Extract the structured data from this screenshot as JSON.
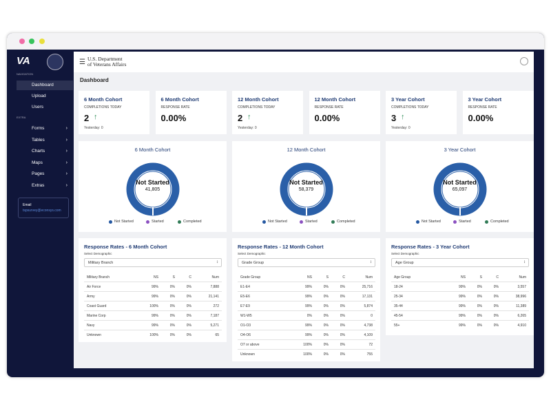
{
  "sidebar": {
    "logo": "VA",
    "nav_heading": "NAVIGATION",
    "nav": [
      "Dashboard",
      "Upload",
      "Users"
    ],
    "extra_heading": "EXTRA",
    "extra": [
      "Forms",
      "Tables",
      "Charts",
      "Maps",
      "Pages",
      "Extras"
    ],
    "email_label": "Email",
    "email": "tspsurvey@econsys.com"
  },
  "header": {
    "title_line1": "U.S. Department",
    "title_line2": "of Veterans Affairs"
  },
  "page_title": "Dashboard",
  "stat_cards": [
    {
      "title": "6 Month Cohort",
      "label": "COMPLETIONS TODAY",
      "value": "2",
      "note": "Yesterday: 0"
    },
    {
      "title": "6 Month Cohort",
      "label": "RESPONSE RATE",
      "value": "0.00%"
    },
    {
      "title": "12 Month Cohort",
      "label": "COMPLETIONS TODAY",
      "value": "2",
      "note": "Yesterday: 0"
    },
    {
      "title": "12 Month Cohort",
      "label": "RESPONSE RATE",
      "value": "0.00%"
    },
    {
      "title": "3 Year Cohort",
      "label": "COMPLETIONS TODAY",
      "value": "3",
      "note": "Yesterday: 0"
    },
    {
      "title": "3 Year Cohort",
      "label": "RESPONSE RATE",
      "value": "0.00%"
    }
  ],
  "donuts": [
    {
      "title": "6 Month Cohort",
      "center_label": "Not Started",
      "center_value": "41,805"
    },
    {
      "title": "12 Month Cohort",
      "center_label": "Not Started",
      "center_value": "58,379"
    },
    {
      "title": "3 Year Cohort",
      "center_label": "Not Started",
      "center_value": "65,097"
    }
  ],
  "legend": [
    "Not Started",
    "Started",
    "Completed"
  ],
  "tables": [
    {
      "title": "Response Rates - 6 Month Cohort",
      "select_label": "Select Demographic",
      "select_value": "Military Branch",
      "columns": [
        "Military Branch",
        "NS",
        "S",
        "C",
        "Num"
      ],
      "rows": [
        [
          "Air Force",
          "99%",
          "0%",
          "0%",
          "7,888"
        ],
        [
          "Army",
          "99%",
          "0%",
          "0%",
          "21,141"
        ],
        [
          "Coast Guard",
          "100%",
          "0%",
          "0%",
          "272"
        ],
        [
          "Marine Corp",
          "99%",
          "0%",
          "0%",
          "7,187"
        ],
        [
          "Navy",
          "99%",
          "0%",
          "0%",
          "5,271"
        ],
        [
          "Unknown",
          "100%",
          "0%",
          "0%",
          "65"
        ]
      ]
    },
    {
      "title": "Response Rates - 12 Month Cohort",
      "select_label": "Select Demographic",
      "select_value": "Grade Group",
      "columns": [
        "Grade Group",
        "NS",
        "S",
        "C",
        "Num"
      ],
      "rows": [
        [
          "E1-E4",
          "99%",
          "0%",
          "0%",
          "25,716"
        ],
        [
          "E5-E6",
          "99%",
          "0%",
          "0%",
          "17,131"
        ],
        [
          "E7-E9",
          "99%",
          "0%",
          "0%",
          "5,874"
        ],
        [
          "W1-W5",
          "0%",
          "0%",
          "0%",
          "0"
        ],
        [
          "O1-O3",
          "99%",
          "0%",
          "0%",
          "4,738"
        ],
        [
          "O4-O6",
          "99%",
          "0%",
          "0%",
          "4,109"
        ],
        [
          "O7 or above",
          "100%",
          "0%",
          "0%",
          "72"
        ],
        [
          "Unknown",
          "100%",
          "0%",
          "0%",
          "755"
        ]
      ]
    },
    {
      "title": "Response Rates - 3 Year Cohort",
      "select_label": "Select Demographic",
      "select_value": "Age Group",
      "columns": [
        "Age Group",
        "NS",
        "S",
        "C",
        "Num"
      ],
      "rows": [
        [
          "18-24",
          "99%",
          "0%",
          "0%",
          "3,557"
        ],
        [
          "25-34",
          "99%",
          "0%",
          "0%",
          "38,996"
        ],
        [
          "35-44",
          "99%",
          "0%",
          "0%",
          "11,389"
        ],
        [
          "45-54",
          "99%",
          "0%",
          "0%",
          "6,265"
        ],
        [
          "55+",
          "99%",
          "0%",
          "0%",
          "4,910"
        ]
      ]
    }
  ]
}
